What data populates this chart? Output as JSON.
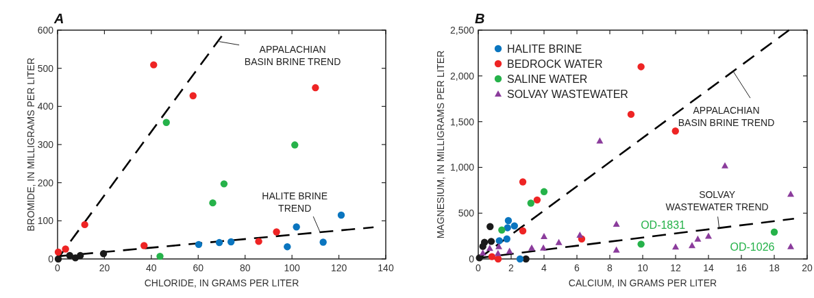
{
  "chart_data": [
    {
      "type": "scatter",
      "title": "A",
      "xlabel": "CHLORIDE, IN GRAMS PER LITER",
      "ylabel": "BROMIDE, IN MILLIGRAMS PER LITER",
      "xlim": [
        0,
        140
      ],
      "ylim": [
        0,
        600
      ],
      "xticks": [
        0,
        20,
        40,
        60,
        80,
        100,
        120,
        140
      ],
      "yticks": [
        0,
        100,
        200,
        300,
        400,
        500,
        600
      ],
      "grid": false,
      "legend": false,
      "series": [
        {
          "type": "line",
          "color": "#000000",
          "line_style": "dashed",
          "x": [
            0,
            71.9
          ],
          "values": [
            0,
            600
          ]
        },
        {
          "type": "line",
          "color": "#000000",
          "line_style": "dashed",
          "x": [
            0,
            134.8
          ],
          "values": [
            7,
            83
          ]
        },
        {
          "color": "#1a1a1a",
          "marker": "circle",
          "x": [
            0.3,
            5.2,
            7.6,
            9.7,
            19.6
          ],
          "values": [
            0,
            9,
            3,
            9,
            14
          ]
        },
        {
          "color": "#0a75bf",
          "marker": "circle",
          "x": [
            121,
            101.9,
            113.3,
            98,
            60.2,
            69,
            74
          ],
          "values": [
            115,
            84,
            44,
            32,
            38,
            43,
            45
          ]
        },
        {
          "color": "#ee2424",
          "marker": "circle",
          "x": [
            41,
            57.8,
            110,
            11.6,
            36.9,
            85.8,
            93.4,
            3.4,
            0.3
          ],
          "values": [
            509,
            428,
            449,
            90,
            35,
            46,
            71,
            26,
            18
          ]
        },
        {
          "color": "#26b24a",
          "marker": "circle",
          "x": [
            46.4,
            101.2,
            71,
            66.2,
            43.7
          ],
          "values": [
            358,
            299,
            197,
            147,
            7
          ]
        }
      ],
      "annotations": [
        {
          "text": "APPALACHIAN\nBASIN BRINE TREND",
          "x": 69,
          "y": 570
        },
        {
          "text": "HALITE BRINE\nTREND",
          "x": 112,
          "y": 70
        }
      ]
    },
    {
      "type": "scatter",
      "title": "B",
      "xlabel": "CALCIUM, IN GRAMS PER LITER",
      "ylabel": "MAGNESIUM, IN MILLIGRAMS PER LITER",
      "xlim": [
        0,
        20
      ],
      "ylim": [
        0,
        2500
      ],
      "xticks": [
        0,
        2,
        4,
        6,
        8,
        10,
        12,
        14,
        16,
        18,
        20
      ],
      "yticks": [
        0,
        {
          "value": 500,
          "label": "500"
        },
        {
          "value": 1000,
          "label": "1,000"
        },
        {
          "value": 1500,
          "label": "1,500"
        },
        {
          "value": 2000,
          "label": "2,000"
        },
        {
          "value": 2500,
          "label": "2,500"
        }
      ],
      "grid": false,
      "legend": "top left",
      "series": [
        {
          "type": "line",
          "color": "#000000",
          "line_style": "dashed",
          "x": [
            0,
            18.9
          ],
          "values": [
            0,
            2500
          ]
        },
        {
          "type": "line",
          "color": "#000000",
          "line_style": "dashed",
          "x": [
            0,
            19.2
          ],
          "values": [
            10,
            440
          ]
        },
        {
          "color": "#1a1a1a",
          "marker": "circle",
          "x": [
            0.72,
            0.79,
            0.38,
            0.28,
            2.9,
            0.07
          ],
          "values": [
            354,
            192,
            182,
            137,
            0,
            12
          ]
        },
        {
          "name": "HALITE BRINE",
          "color": "#0a75bf",
          "marker": "circle",
          "x": [
            1.83,
            2.2,
            1.78,
            1.74,
            1.28,
            2.54
          ],
          "values": [
            419,
            361,
            341,
            219,
            199,
            0
          ]
        },
        {
          "name": "BEDROCK WATER",
          "color": "#ee2424",
          "marker": "circle",
          "x": [
            9.9,
            9.29,
            11.99,
            2.71,
            3.58,
            2.71,
            6.29,
            0.83,
            1.21
          ],
          "values": [
            2100,
            1580,
            1398,
            842,
            645,
            307,
            219,
            25,
            0
          ]
        },
        {
          "name": "SALINE WATER",
          "color": "#26b24a",
          "marker": "circle",
          "x": [
            4.0,
            3.2,
            1.43,
            9.9,
            18.0
          ],
          "values": [
            735,
            610,
            316,
            162,
            294
          ]
        },
        {
          "name": "SOLVAY WASTEWATER",
          "color": "#8b3c9c",
          "marker": "triangle",
          "x": [
            7.39,
            15.0,
            19.0,
            8.4,
            6.18,
            4.0,
            4.9,
            14.0,
            13.35,
            13.0,
            12.0,
            19.0,
            8.4,
            3.96,
            3.25,
            1.9,
            1.2,
            0.7,
            0.28,
            1.25
          ],
          "values": [
            1291,
            1019,
            710,
            381,
            262,
            247,
            182,
            251,
            219,
            147,
            132,
            137,
            100,
            122,
            122,
            87,
            62,
            117,
            67,
            137
          ]
        }
      ],
      "annotations": [
        {
          "text": "APPALACHIAN\nBASIN BRINE TREND",
          "x": 15.5,
          "y": 2050
        },
        {
          "text": "SOLVAY\nWASTEWATER TREND",
          "x": 14.65,
          "y": 335
        },
        {
          "text": "OD-1831",
          "x": 9.9,
          "y": 162
        },
        {
          "text": "OD-1026",
          "x": 18.0,
          "y": 294
        }
      ]
    }
  ]
}
